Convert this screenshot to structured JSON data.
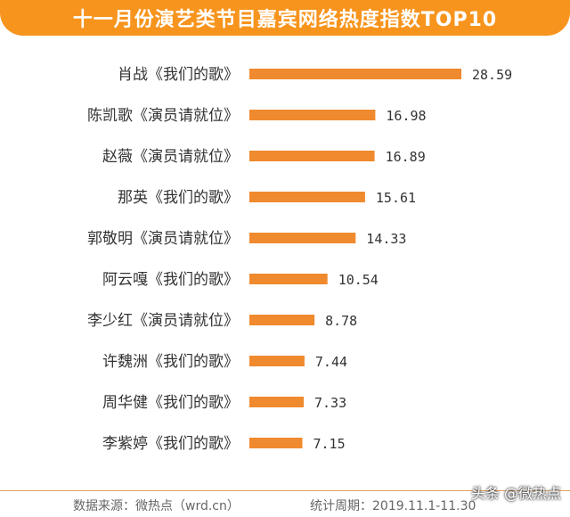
{
  "title": "十一月份演艺类节目嘉宾网络热度指数TOP10",
  "chart_data": {
    "type": "bar",
    "orientation": "horizontal",
    "categories": [
      "肖战《我们的歌》",
      "陈凯歌《演员请就位》",
      "赵薇《演员请就位》",
      "那英《我们的歌》",
      "郭敬明《演员请就位》",
      "阿云嘎《我们的歌》",
      "李少红《演员请就位》",
      "许魏洲《我们的歌》",
      "周华健《我们的歌》",
      "李紫婷《我们的歌》"
    ],
    "values": [
      28.59,
      16.98,
      16.89,
      15.61,
      14.33,
      10.54,
      8.78,
      7.44,
      7.33,
      7.15
    ],
    "value_labels": [
      "28.59",
      "16.98",
      "16.89",
      "15.61",
      "14.33",
      "10.54",
      "8.78",
      "7.44",
      "7.33",
      "7.15"
    ],
    "bar_color": "#f08a2e",
    "grid": false,
    "axes_visible": false,
    "xlim": [
      0,
      28.59
    ]
  },
  "footer": {
    "source": "数据来源：微热点（wrd.cn）",
    "period": "统计周期：2019.11.1-11.30"
  },
  "watermark": "头条 @微热点",
  "colors": {
    "header": "#f7941d",
    "bar": "#f08a2e",
    "text": "#333333"
  }
}
